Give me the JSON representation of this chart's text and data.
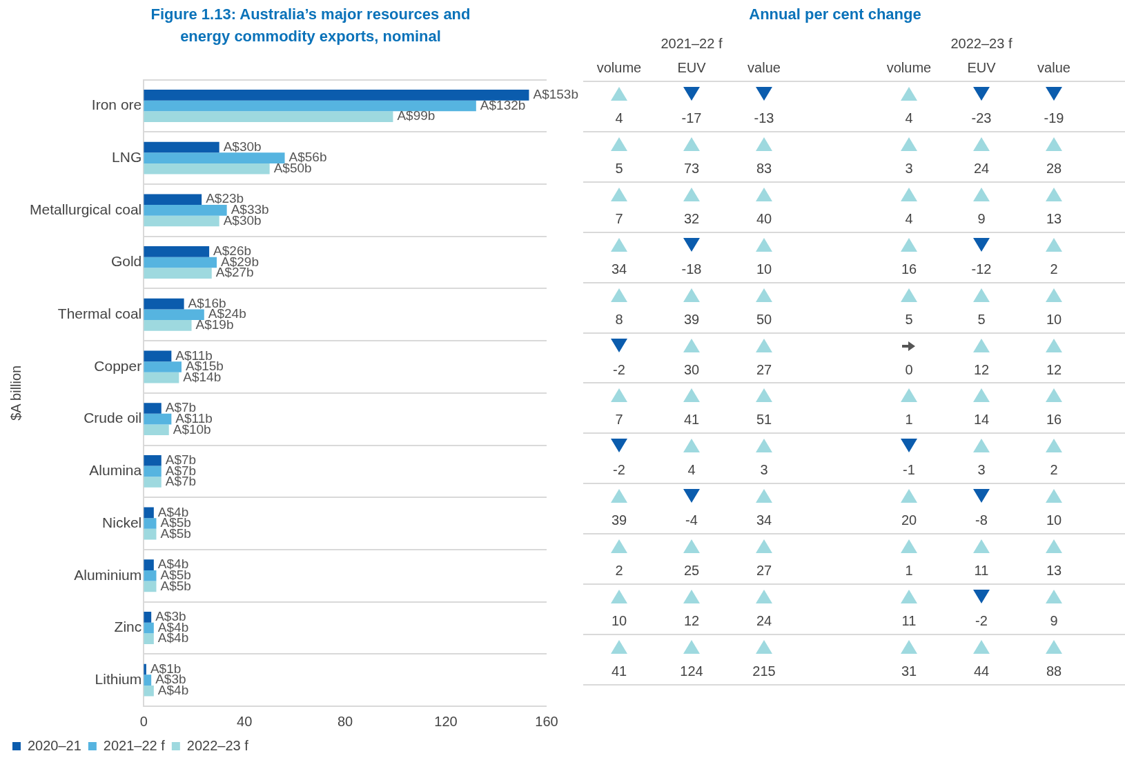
{
  "chart_data": [
    {
      "type": "bar",
      "orientation": "horizontal",
      "title": "Figure 1.13: Australia’s major resources and energy commodity exports, nominal",
      "ylabel": "$A billion",
      "categories": [
        "Iron ore",
        "LNG",
        "Metallurgical coal",
        "Gold",
        "Thermal coal",
        "Copper",
        "Crude oil",
        "Alumina",
        "Nickel",
        "Aluminium",
        "Zinc",
        "Lithium"
      ],
      "series": [
        {
          "name": "2020–21",
          "color": "#0b5cad",
          "values": [
            153,
            30,
            23,
            26,
            16,
            11,
            7,
            7,
            4,
            4,
            3,
            1
          ],
          "value_labels": [
            "A$153b",
            "A$30b",
            "A$23b",
            "A$26b",
            "A$16b",
            "A$11b",
            "A$7b",
            "A$7b",
            "A$4b",
            "A$4b",
            "A$3b",
            "A$1b"
          ]
        },
        {
          "name": "2021–22 f",
          "color": "#56b4e0",
          "values": [
            132,
            56,
            33,
            29,
            24,
            15,
            11,
            7,
            5,
            5,
            4,
            3
          ],
          "value_labels": [
            "A$132b",
            "A$56b",
            "A$33b",
            "A$29b",
            "A$24b",
            "A$15b",
            "A$11b",
            "A$7b",
            "A$5b",
            "A$5b",
            "A$4b",
            "A$3b"
          ]
        },
        {
          "name": "2022–23 f",
          "color": "#9ed9df",
          "values": [
            99,
            50,
            30,
            27,
            19,
            14,
            10,
            7,
            5,
            5,
            4,
            4
          ],
          "value_labels": [
            "A$99b",
            "A$50b",
            "A$30b",
            "A$27b",
            "A$19b",
            "A$14b",
            "A$10b",
            "A$7b",
            "A$5b",
            "A$5b",
            "A$4b",
            "A$4b"
          ]
        }
      ],
      "xlim": [
        0,
        160
      ],
      "xticks": [
        0,
        40,
        80,
        120,
        160
      ],
      "grid": "y",
      "legend": "bottom left"
    },
    {
      "type": "other",
      "title": "Annual per cent change",
      "annotations": [
        "2021–22 f",
        "2022–23 f",
        "volume",
        "EUV",
        "value",
        "volume",
        "EUV",
        "value",
        "4",
        "-17",
        "-13",
        "4",
        "-23",
        "-19",
        "5",
        "73",
        "83",
        "3",
        "24",
        "28",
        "7",
        "32",
        "40",
        "4",
        "9",
        "13",
        "34",
        "-18",
        "10",
        "16",
        "-12",
        "2",
        "8",
        "39",
        "50",
        "5",
        "5",
        "10",
        "-2",
        "30",
        "27",
        "0",
        "12",
        "12",
        "7",
        "41",
        "51",
        "1",
        "14",
        "16",
        "-2",
        "4",
        "3",
        "-1",
        "3",
        "2",
        "39",
        "-4",
        "34",
        "20",
        "-8",
        "10",
        "2",
        "25",
        "27",
        "1",
        "11",
        "13",
        "10",
        "12",
        "24",
        "11",
        "-2",
        "9",
        "41",
        "124",
        "215",
        "31",
        "44",
        "88"
      ]
    }
  ]
}
